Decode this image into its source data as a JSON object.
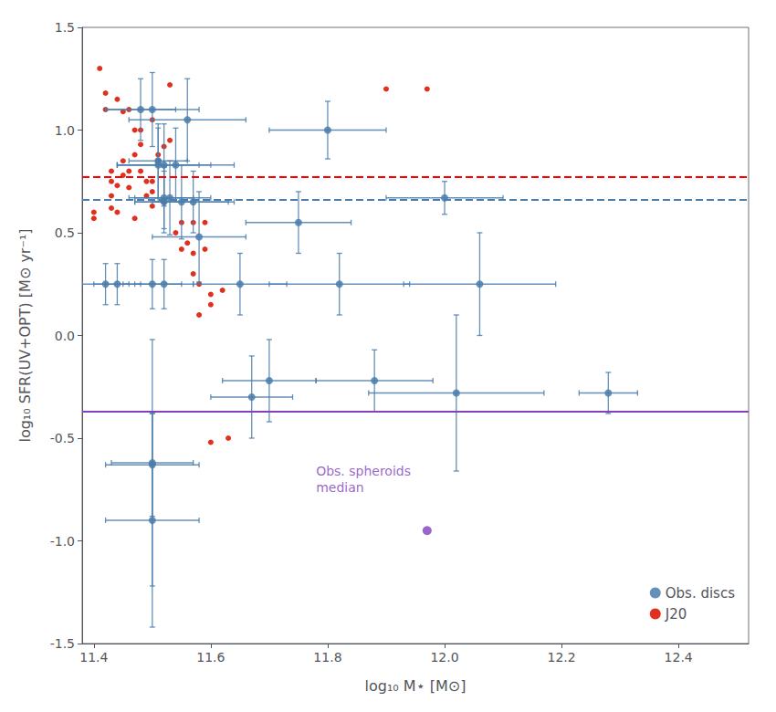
{
  "chart_data": {
    "type": "scatter",
    "xlabel": "log₁₀ M⋆ [M⊙]",
    "ylabel": "log₁₀ SFR(UV+OPT) [M⊙ yr⁻¹]",
    "xlim": [
      11.38,
      12.52
    ],
    "ylim": [
      -1.5,
      1.5
    ],
    "xticks": [
      11.4,
      11.6,
      11.8,
      {
        "value": 12,
        "label": "12.0"
      },
      12.2,
      12.4
    ],
    "yticks": [
      -1.5,
      {
        "value": -1,
        "label": "-1.0"
      },
      -0.5,
      {
        "value": 0,
        "label": "0.0"
      },
      0.5,
      {
        "value": 1,
        "label": "1.0"
      },
      1.5
    ],
    "grid": false,
    "legend": "lower right",
    "series": [
      {
        "name": "Obs. discs",
        "color": "#4a7dab",
        "marker": "circle",
        "x": [
          11.48,
          11.5,
          11.51,
          11.51,
          11.52,
          11.52,
          11.52,
          11.53,
          11.54,
          11.55,
          11.56,
          11.57,
          11.58,
          11.42,
          11.44,
          11.5,
          11.52,
          11.65,
          11.82,
          12.06,
          11.75,
          11.8,
          12.0,
          11.67,
          11.7,
          11.88,
          12.02,
          12.28,
          11.5,
          11.5,
          11.5
        ],
        "values": [
          1.1,
          1.1,
          0.85,
          0.83,
          0.83,
          0.67,
          0.65,
          0.67,
          0.83,
          0.65,
          1.05,
          0.65,
          0.48,
          0.25,
          0.25,
          0.25,
          0.25,
          0.25,
          0.25,
          0.25,
          0.55,
          1.0,
          0.67,
          -0.3,
          -0.22,
          -0.22,
          -0.28,
          -0.28,
          -0.62,
          -0.63,
          -0.9
        ],
        "xerr": [
          0.06,
          0.08,
          0.05,
          0.07,
          0.08,
          0.05,
          0.05,
          0.07,
          0.1,
          0.08,
          0.1,
          0.07,
          0.08,
          0.04,
          0.04,
          0.05,
          0.05,
          0.08,
          0.12,
          0.13,
          0.09,
          0.1,
          0.1,
          0.07,
          0.08,
          0.1,
          0.15,
          0.05,
          0.07,
          0.08,
          0.08
        ],
        "yerr": [
          0.15,
          0.18,
          0.18,
          0.18,
          0.2,
          0.15,
          0.15,
          0.18,
          0.18,
          0.18,
          0.2,
          0.15,
          0.22,
          0.1,
          0.1,
          0.12,
          0.12,
          0.15,
          0.15,
          0.25,
          0.15,
          0.14,
          0.08,
          0.2,
          0.2,
          0.15,
          0.38,
          0.1,
          0.6,
          0.25,
          0.52
        ]
      },
      {
        "name": "J20",
        "color": "#e03020",
        "marker": "circle",
        "x": [
          11.4,
          11.4,
          11.41,
          11.42,
          11.42,
          11.43,
          11.43,
          11.43,
          11.43,
          11.44,
          11.44,
          11.44,
          11.45,
          11.45,
          11.45,
          11.46,
          11.46,
          11.46,
          11.47,
          11.47,
          11.47,
          11.48,
          11.48,
          11.48,
          11.49,
          11.49,
          11.5,
          11.5,
          11.5,
          11.5,
          11.51,
          11.51,
          11.52,
          11.52,
          11.53,
          11.53,
          11.54,
          11.55,
          11.55,
          11.56,
          11.57,
          11.57,
          11.58,
          11.58,
          11.59,
          11.6,
          11.6,
          11.57,
          11.59,
          11.6,
          11.62,
          11.63,
          11.9,
          11.97
        ],
        "values": [
          0.57,
          0.6,
          1.3,
          1.1,
          1.18,
          0.8,
          0.75,
          0.68,
          0.62,
          1.15,
          0.73,
          0.6,
          1.09,
          0.85,
          0.78,
          0.8,
          0.72,
          1.1,
          0.88,
          1.0,
          0.57,
          0.93,
          1.0,
          0.8,
          0.75,
          0.68,
          0.75,
          0.63,
          0.7,
          1.05,
          0.85,
          0.88,
          0.92,
          0.65,
          1.22,
          0.95,
          0.5,
          0.42,
          0.55,
          0.45,
          0.3,
          0.4,
          0.25,
          0.1,
          0.42,
          0.15,
          0.2,
          0.55,
          0.55,
          -0.52,
          0.22,
          -0.5,
          1.2,
          1.2
        ]
      }
    ],
    "hlines": [
      {
        "y": 0.77,
        "color": "red",
        "line_style": "dashed"
      },
      {
        "y": 0.655,
        "color": "#4a7dab",
        "line_style": "dashed"
      },
      {
        "y": -0.37,
        "color": "#8040c0",
        "line_style": "solid"
      }
    ],
    "annotations": [
      {
        "text": "Obs. spheroids\nmedian",
        "x": 11.78,
        "y": -0.78,
        "point": [
          11.97,
          -0.95
        ],
        "color": "#8040c0"
      }
    ]
  }
}
